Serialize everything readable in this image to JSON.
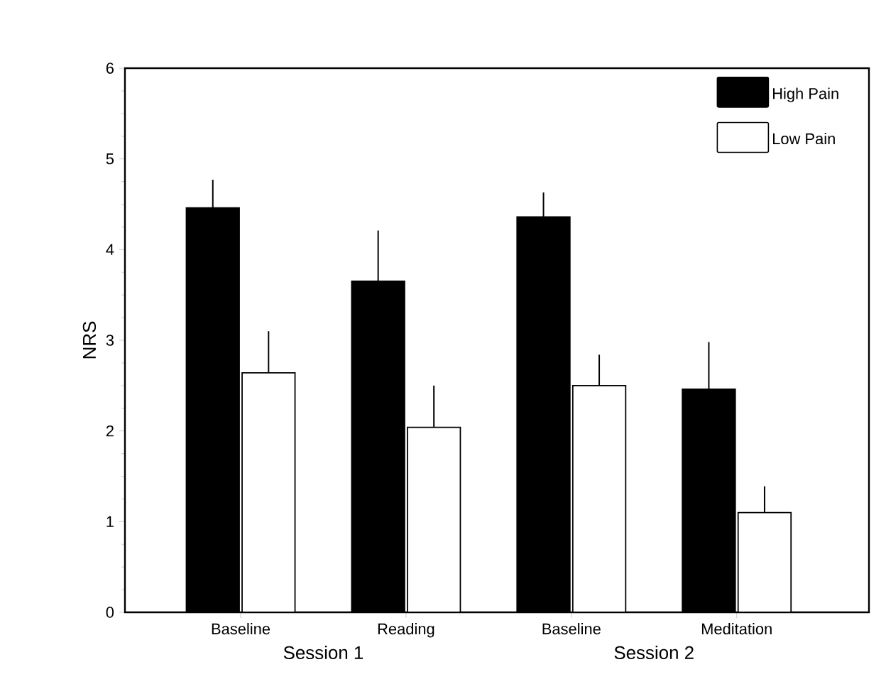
{
  "chart_data": {
    "type": "bar",
    "ylabel": "NRS",
    "categories": [
      "Baseline",
      "Reading",
      "Baseline",
      "Meditation"
    ],
    "series": [
      {
        "name": "High Pain",
        "color": "#000000",
        "values": [
          4.46,
          3.65,
          4.36,
          2.46
        ],
        "errors": [
          [
            4.46,
            4.77
          ],
          [
            3.65,
            4.21
          ],
          [
            4.36,
            4.63
          ],
          [
            2.46,
            2.98
          ]
        ]
      },
      {
        "name": "Low Pain",
        "color": "#ffffff",
        "values": [
          2.64,
          2.04,
          2.5,
          1.1
        ],
        "errors": [
          [
            2.64,
            3.1
          ],
          [
            2.04,
            2.5
          ],
          [
            2.5,
            2.84
          ],
          [
            1.1,
            1.39
          ]
        ]
      }
    ],
    "ylim": [
      0,
      6
    ],
    "yticks": [
      0,
      1,
      2,
      3,
      4,
      5,
      6
    ],
    "legend": "top right",
    "annotations": [
      "Session 1",
      "Session 2"
    ]
  }
}
